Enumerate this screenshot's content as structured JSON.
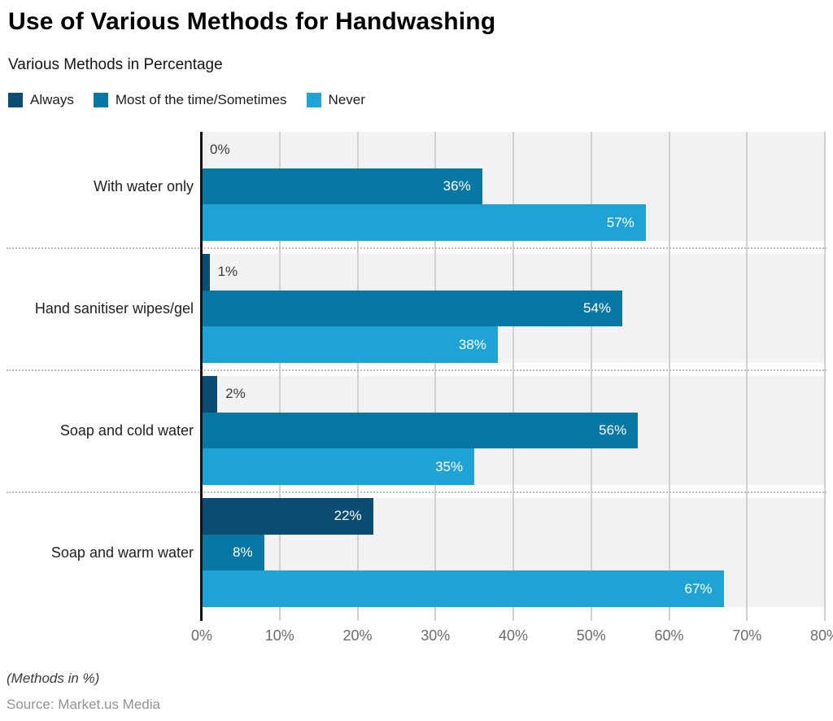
{
  "header": {
    "title": "Use of Various Methods for Handwashing",
    "subtitle": "Various Methods in Percentage"
  },
  "chart_data": {
    "type": "bar",
    "orientation": "horizontal",
    "title": "Use of Various Methods for Handwashing",
    "subtitle": "Various Methods in Percentage",
    "categories": [
      "With water only",
      "Hand sanitiser wipes/gel",
      "Soap and cold water",
      "Soap and warm water"
    ],
    "series": [
      {
        "name": "Always",
        "color": "#0a4c72",
        "values": [
          0,
          1,
          2,
          22
        ]
      },
      {
        "name": "Most of the time/Sometimes",
        "color": "#0677a2",
        "values": [
          36,
          54,
          56,
          8
        ]
      },
      {
        "name": "Never",
        "color": "#1fa2d4",
        "values": [
          57,
          38,
          35,
          67
        ]
      }
    ],
    "value_labels": [
      [
        "0%",
        "1%",
        "2%",
        "22%"
      ],
      [
        "36%",
        "54%",
        "56%",
        "8%"
      ],
      [
        "57%",
        "38%",
        "35%",
        "67%"
      ]
    ],
    "xlim": [
      0,
      80
    ],
    "xticks": [
      0,
      10,
      20,
      30,
      40,
      50,
      60,
      70,
      80
    ],
    "xtick_labels": [
      "0%",
      "10%",
      "20%",
      "30%",
      "40%",
      "50%",
      "60%",
      "70%",
      "80%"
    ],
    "grid": "vertical",
    "legend_position": "top",
    "plot_bg_color": "#f2f2f2",
    "grid_color": "#ccd2d2",
    "inside_label_color": "#ffffff",
    "outside_label_color": "#3a3a3a",
    "inside_label_min_value": 8
  },
  "footer": {
    "note": "(Methods in %)",
    "source": "Source: Market.us Media"
  }
}
